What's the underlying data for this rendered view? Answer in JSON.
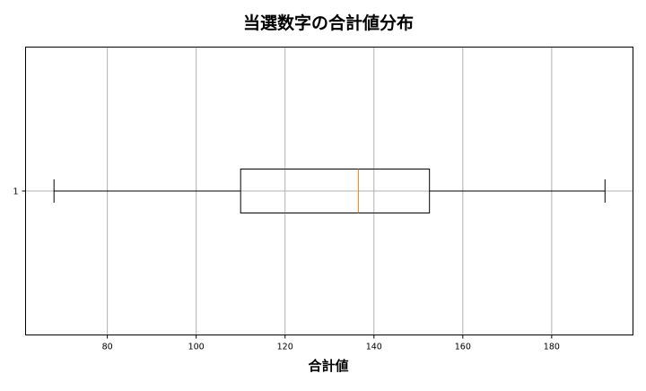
{
  "chart_data": {
    "type": "boxplot",
    "orientation": "horizontal",
    "title": "当選数字の合計値分布",
    "xlabel": "合計値",
    "ylabel": "",
    "xlim": [
      61.6,
      198.3
    ],
    "xticks": [
      80,
      100,
      120,
      140,
      160,
      180
    ],
    "yticks": [
      "1"
    ],
    "grid": true,
    "boxes": [
      {
        "label": "1",
        "whisker_low": 68,
        "q1": 110,
        "median": 136.5,
        "q3": 152.5,
        "whisker_high": 192
      }
    ],
    "colors": {
      "box": "#000000",
      "median": "#ff7f0e",
      "grid": "#b0b0b0"
    }
  }
}
